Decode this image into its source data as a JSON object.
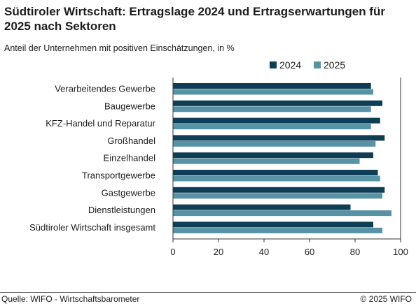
{
  "header": {
    "title": "Südtiroler Wirtschaft: Ertragslage 2024 und Ertragserwartungen für 2025 nach Sektoren",
    "subtitle": "Anteil der Unternehmen mit positiven Einschätzungen, in %"
  },
  "footer": {
    "source": "Quelle: WIFO - Wirtschaftsbarometer",
    "copyright": "© 2025 WIFO"
  },
  "colors": {
    "series_2024": "#0e3e55",
    "series_2025": "#5793a5",
    "axis": "#333333",
    "text": "#1d1d1b"
  },
  "chart_data": {
    "type": "bar",
    "orientation": "horizontal",
    "title": "Südtiroler Wirtschaft: Ertragslage 2024 und Ertragserwartungen für 2025 nach Sektoren",
    "subtitle": "Anteil der Unternehmen mit positiven Einschätzungen, in %",
    "categories": [
      "Verarbeitendes Gewerbe",
      "Baugewerbe",
      "KFZ-Handel und Reparatur",
      "Großhandel",
      "Einzelhandel",
      "Transportgewerbe",
      "Gastgewerbe",
      "Dienstleistungen",
      "Südtiroler Wirtschaft insgesamt"
    ],
    "series": [
      {
        "name": "2024",
        "values": [
          87,
          92,
          91,
          93,
          88,
          90,
          93,
          78,
          88
        ]
      },
      {
        "name": "2025",
        "values": [
          88,
          87,
          87,
          89,
          82,
          91,
          92,
          96,
          92
        ]
      }
    ],
    "xlim": [
      0,
      100
    ],
    "xticks": [
      0,
      20,
      40,
      60,
      80,
      100
    ],
    "grid": false,
    "legend_position": "top-right"
  }
}
